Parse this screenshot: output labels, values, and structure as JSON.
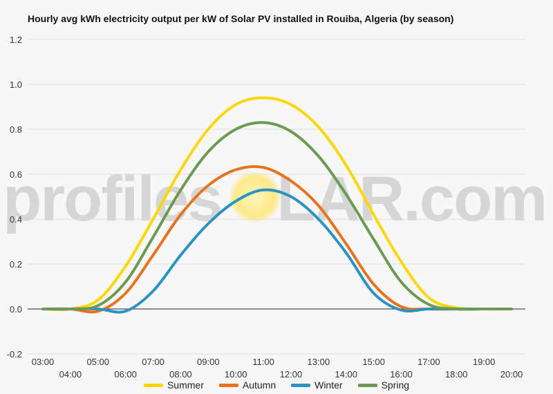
{
  "chart_data": {
    "type": "line",
    "title": "Hourly avg kWh electricity output per kW of Solar PV installed in Rouiba, Algeria (by season)",
    "x": [
      "03:00",
      "04:00",
      "05:00",
      "06:00",
      "07:00",
      "08:00",
      "09:00",
      "10:00",
      "11:00",
      "12:00",
      "13:00",
      "14:00",
      "15:00",
      "16:00",
      "17:00",
      "18:00",
      "19:00",
      "20:00"
    ],
    "ylim": [
      -0.2,
      1.2
    ],
    "yticks": [
      "-0.2",
      "0.0",
      "0.2",
      "0.4",
      "0.6",
      "0.8",
      "1.0",
      "1.2"
    ],
    "grid": true,
    "legend_position": "bottom",
    "series": [
      {
        "name": "Summer",
        "color": "#ffd700",
        "values": [
          0,
          0,
          0.04,
          0.19,
          0.4,
          0.62,
          0.8,
          0.91,
          0.94,
          0.91,
          0.81,
          0.64,
          0.42,
          0.21,
          0.05,
          0.005,
          0,
          0
        ]
      },
      {
        "name": "Autumn",
        "color": "#e8731e",
        "values": [
          0,
          0,
          -0.01,
          0.07,
          0.24,
          0.42,
          0.55,
          0.62,
          0.63,
          0.57,
          0.46,
          0.29,
          0.11,
          0.01,
          0,
          0,
          0,
          0
        ]
      },
      {
        "name": "Winter",
        "color": "#2a93c1",
        "values": [
          0,
          0,
          0,
          -0.01,
          0.08,
          0.24,
          0.38,
          0.48,
          0.53,
          0.5,
          0.4,
          0.25,
          0.07,
          -0.005,
          0,
          0,
          0,
          0
        ]
      },
      {
        "name": "Spring",
        "color": "#6b9a50",
        "values": [
          0,
          0,
          0.015,
          0.12,
          0.32,
          0.53,
          0.7,
          0.8,
          0.83,
          0.79,
          0.68,
          0.51,
          0.31,
          0.12,
          0.02,
          0,
          0,
          0
        ]
      }
    ]
  },
  "watermark": {
    "text_left": "profiles",
    "text_right": "LAR.com"
  }
}
